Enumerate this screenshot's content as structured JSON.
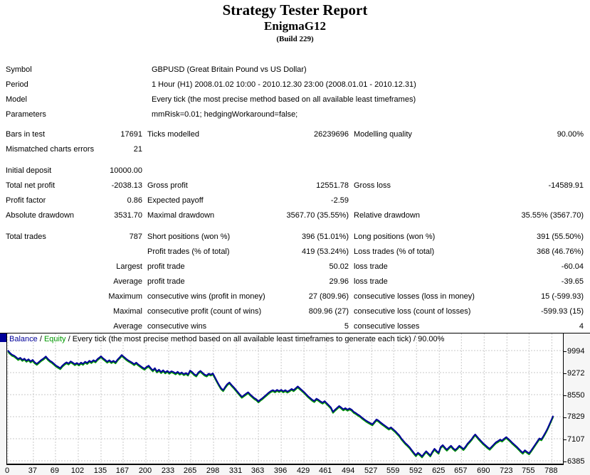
{
  "header": {
    "title": "Strategy Tester Report",
    "subtitle": "EnigmaG12",
    "build": "(Build 229)"
  },
  "info_rows": [
    {
      "label": "Symbol",
      "value": "GBPUSD (Great Britain Pound vs US Dollar)"
    },
    {
      "label": "Period",
      "value": "1 Hour (H1) 2008.01.02 10:00 - 2010.12.30 23:00 (2008.01.01 - 2010.12.31)"
    },
    {
      "label": "Model",
      "value": "Every tick (the most precise method based on all available least timeframes)"
    },
    {
      "label": "Parameters",
      "value": "mmRisk=0.01; hedgingWorkaround=false;"
    }
  ],
  "stats": {
    "sections": [
      {
        "rows": [
          [
            "Bars in test",
            "17691",
            "Ticks modelled",
            "26239696",
            "Modelling quality",
            "90.00%"
          ],
          [
            "Mismatched charts errors",
            "21",
            "",
            "",
            "",
            ""
          ]
        ]
      },
      {
        "rows": [
          [
            "Initial deposit",
            "10000.00",
            "",
            "",
            "",
            ""
          ],
          [
            "Total net profit",
            "-2038.13",
            "Gross profit",
            "12551.78",
            "Gross loss",
            "-14589.91"
          ],
          [
            "Profit factor",
            "0.86",
            "Expected payoff",
            "-2.59",
            "",
            ""
          ],
          [
            "Absolute drawdown",
            "3531.70",
            "Maximal drawdown",
            "3567.70 (35.55%)",
            "Relative drawdown",
            "35.55% (3567.70)"
          ]
        ]
      },
      {
        "rows": [
          [
            "Total trades",
            "787",
            "Short positions (won %)",
            "396 (51.01%)",
            "Long positions (won %)",
            "391 (55.50%)"
          ],
          [
            "",
            "",
            "Profit trades (% of total)",
            "419 (53.24%)",
            "Loss trades (% of total)",
            "368 (46.76%)"
          ],
          [
            "",
            "Largest",
            "profit trade",
            "50.02",
            "loss trade",
            "-60.04"
          ],
          [
            "",
            "Average",
            "profit trade",
            "29.96",
            "loss trade",
            "-39.65"
          ],
          [
            "",
            "Maximum",
            "consecutive wins (profit in money)",
            "27 (809.96)",
            "consecutive losses (loss in money)",
            "15 (-599.93)"
          ],
          [
            "",
            "Maximal",
            "consecutive profit (count of wins)",
            "809.96 (27)",
            "consecutive loss (count of losses)",
            "-599.93 (15)"
          ],
          [
            "",
            "Average",
            "consecutive wins",
            "5",
            "consecutive losses",
            "4"
          ]
        ]
      }
    ]
  },
  "chart_data": {
    "type": "line",
    "legend": {
      "balance_label": "Balance",
      "equity_label": "Equity",
      "separator": " / ",
      "description": "Every tick (the most precise method based on all available least timeframes to generate each tick) / 90.00%"
    },
    "colors": {
      "balance": "#000099",
      "equity": "#009900",
      "grid": "#c9c9c9"
    },
    "x_ticks": [
      0,
      37,
      69,
      102,
      135,
      167,
      200,
      233,
      265,
      298,
      331,
      363,
      396,
      429,
      461,
      494,
      527,
      559,
      592,
      625,
      657,
      690,
      723,
      755,
      788
    ],
    "y_ticks": [
      9994,
      9272,
      8550,
      7829,
      7107,
      6385
    ],
    "xlim": [
      0,
      805
    ],
    "ylim": [
      6290,
      10550
    ],
    "series": [
      {
        "name": "Balance",
        "color": "#000099",
        "points": [
          [
            0,
            10000
          ],
          [
            3,
            9920
          ],
          [
            6,
            9860
          ],
          [
            9,
            9830
          ],
          [
            12,
            9780
          ],
          [
            15,
            9720
          ],
          [
            18,
            9760
          ],
          [
            21,
            9690
          ],
          [
            24,
            9730
          ],
          [
            27,
            9660
          ],
          [
            30,
            9710
          ],
          [
            33,
            9640
          ],
          [
            36,
            9690
          ],
          [
            39,
            9610
          ],
          [
            42,
            9560
          ],
          [
            45,
            9620
          ],
          [
            48,
            9680
          ],
          [
            52,
            9740
          ],
          [
            55,
            9800
          ],
          [
            58,
            9720
          ],
          [
            61,
            9660
          ],
          [
            64,
            9620
          ],
          [
            67,
            9560
          ],
          [
            70,
            9500
          ],
          [
            73,
            9460
          ],
          [
            76,
            9420
          ],
          [
            79,
            9500
          ],
          [
            82,
            9560
          ],
          [
            85,
            9610
          ],
          [
            88,
            9570
          ],
          [
            91,
            9640
          ],
          [
            94,
            9600
          ],
          [
            97,
            9550
          ],
          [
            100,
            9590
          ],
          [
            103,
            9540
          ],
          [
            106,
            9600
          ],
          [
            109,
            9560
          ],
          [
            112,
            9630
          ],
          [
            115,
            9590
          ],
          [
            118,
            9660
          ],
          [
            121,
            9620
          ],
          [
            124,
            9680
          ],
          [
            127,
            9640
          ],
          [
            130,
            9720
          ],
          [
            133,
            9770
          ],
          [
            135,
            9810
          ],
          [
            138,
            9740
          ],
          [
            141,
            9690
          ],
          [
            144,
            9630
          ],
          [
            147,
            9680
          ],
          [
            150,
            9620
          ],
          [
            153,
            9660
          ],
          [
            156,
            9610
          ],
          [
            159,
            9700
          ],
          [
            162,
            9770
          ],
          [
            165,
            9850
          ],
          [
            168,
            9790
          ],
          [
            171,
            9730
          ],
          [
            174,
            9680
          ],
          [
            177,
            9640
          ],
          [
            180,
            9600
          ],
          [
            183,
            9550
          ],
          [
            186,
            9600
          ],
          [
            189,
            9540
          ],
          [
            192,
            9490
          ],
          [
            195,
            9440
          ],
          [
            198,
            9400
          ],
          [
            201,
            9460
          ],
          [
            204,
            9500
          ],
          [
            207,
            9420
          ],
          [
            210,
            9350
          ],
          [
            213,
            9420
          ],
          [
            216,
            9310
          ],
          [
            219,
            9370
          ],
          [
            222,
            9290
          ],
          [
            225,
            9350
          ],
          [
            228,
            9280
          ],
          [
            231,
            9330
          ],
          [
            234,
            9270
          ],
          [
            237,
            9320
          ],
          [
            240,
            9290
          ],
          [
            243,
            9250
          ],
          [
            246,
            9300
          ],
          [
            249,
            9240
          ],
          [
            252,
            9280
          ],
          [
            255,
            9220
          ],
          [
            258,
            9260
          ],
          [
            261,
            9210
          ],
          [
            264,
            9340
          ],
          [
            267,
            9290
          ],
          [
            270,
            9220
          ],
          [
            273,
            9180
          ],
          [
            276,
            9280
          ],
          [
            279,
            9330
          ],
          [
            282,
            9270
          ],
          [
            285,
            9210
          ],
          [
            288,
            9180
          ],
          [
            291,
            9240
          ],
          [
            294,
            9210
          ],
          [
            297,
            9250
          ],
          [
            300,
            9120
          ],
          [
            303,
            8990
          ],
          [
            306,
            8870
          ],
          [
            309,
            8760
          ],
          [
            312,
            8700
          ],
          [
            315,
            8810
          ],
          [
            318,
            8900
          ],
          [
            321,
            8950
          ],
          [
            324,
            8870
          ],
          [
            327,
            8800
          ],
          [
            330,
            8720
          ],
          [
            333,
            8640
          ],
          [
            336,
            8560
          ],
          [
            339,
            8480
          ],
          [
            342,
            8530
          ],
          [
            345,
            8580
          ],
          [
            348,
            8630
          ],
          [
            351,
            8560
          ],
          [
            354,
            8500
          ],
          [
            357,
            8440
          ],
          [
            360,
            8400
          ],
          [
            363,
            8330
          ],
          [
            366,
            8390
          ],
          [
            369,
            8440
          ],
          [
            372,
            8500
          ],
          [
            375,
            8560
          ],
          [
            378,
            8620
          ],
          [
            381,
            8670
          ],
          [
            384,
            8700
          ],
          [
            387,
            8660
          ],
          [
            390,
            8710
          ],
          [
            393,
            8670
          ],
          [
            396,
            8710
          ],
          [
            399,
            8660
          ],
          [
            402,
            8700
          ],
          [
            405,
            8650
          ],
          [
            408,
            8690
          ],
          [
            411,
            8740
          ],
          [
            414,
            8700
          ],
          [
            417,
            8760
          ],
          [
            420,
            8820
          ],
          [
            423,
            8760
          ],
          [
            426,
            8700
          ],
          [
            429,
            8640
          ],
          [
            432,
            8570
          ],
          [
            435,
            8500
          ],
          [
            438,
            8440
          ],
          [
            441,
            8380
          ],
          [
            444,
            8340
          ],
          [
            447,
            8420
          ],
          [
            450,
            8380
          ],
          [
            453,
            8330
          ],
          [
            456,
            8290
          ],
          [
            459,
            8340
          ],
          [
            462,
            8270
          ],
          [
            465,
            8200
          ],
          [
            468,
            8130
          ],
          [
            471,
            7990
          ],
          [
            474,
            8060
          ],
          [
            477,
            8120
          ],
          [
            480,
            8180
          ],
          [
            483,
            8130
          ],
          [
            486,
            8070
          ],
          [
            489,
            8110
          ],
          [
            492,
            8060
          ],
          [
            495,
            8100
          ],
          [
            498,
            8060
          ],
          [
            501,
            7990
          ],
          [
            504,
            7950
          ],
          [
            507,
            7900
          ],
          [
            510,
            7860
          ],
          [
            513,
            7800
          ],
          [
            516,
            7750
          ],
          [
            519,
            7700
          ],
          [
            522,
            7660
          ],
          [
            525,
            7620
          ],
          [
            528,
            7580
          ],
          [
            531,
            7660
          ],
          [
            534,
            7740
          ],
          [
            537,
            7700
          ],
          [
            540,
            7640
          ],
          [
            543,
            7590
          ],
          [
            546,
            7540
          ],
          [
            549,
            7490
          ],
          [
            552,
            7440
          ],
          [
            555,
            7480
          ],
          [
            558,
            7420
          ],
          [
            561,
            7360
          ],
          [
            564,
            7290
          ],
          [
            567,
            7220
          ],
          [
            570,
            7120
          ],
          [
            573,
            7040
          ],
          [
            576,
            6960
          ],
          [
            579,
            6900
          ],
          [
            582,
            6830
          ],
          [
            585,
            6740
          ],
          [
            588,
            6650
          ],
          [
            591,
            6570
          ],
          [
            594,
            6650
          ],
          [
            597,
            6600
          ],
          [
            600,
            6530
          ],
          [
            603,
            6620
          ],
          [
            606,
            6700
          ],
          [
            609,
            6630
          ],
          [
            612,
            6560
          ],
          [
            615,
            6680
          ],
          [
            618,
            6780
          ],
          [
            621,
            6710
          ],
          [
            624,
            6650
          ],
          [
            627,
            6840
          ],
          [
            630,
            6900
          ],
          [
            633,
            6820
          ],
          [
            636,
            6750
          ],
          [
            639,
            6820
          ],
          [
            642,
            6880
          ],
          [
            645,
            6800
          ],
          [
            648,
            6740
          ],
          [
            651,
            6800
          ],
          [
            654,
            6880
          ],
          [
            657,
            6830
          ],
          [
            660,
            6770
          ],
          [
            663,
            6850
          ],
          [
            666,
            6950
          ],
          [
            669,
            7020
          ],
          [
            672,
            7100
          ],
          [
            675,
            7200
          ],
          [
            677,
            7250
          ],
          [
            680,
            7170
          ],
          [
            683,
            7090
          ],
          [
            686,
            7020
          ],
          [
            689,
            6950
          ],
          [
            692,
            6890
          ],
          [
            695,
            6830
          ],
          [
            698,
            6780
          ],
          [
            701,
            6850
          ],
          [
            704,
            6920
          ],
          [
            707,
            6990
          ],
          [
            710,
            7030
          ],
          [
            713,
            7080
          ],
          [
            716,
            7050
          ],
          [
            719,
            7110
          ],
          [
            722,
            7160
          ],
          [
            725,
            7100
          ],
          [
            728,
            7040
          ],
          [
            731,
            6970
          ],
          [
            734,
            6910
          ],
          [
            737,
            6850
          ],
          [
            740,
            6780
          ],
          [
            743,
            6710
          ],
          [
            746,
            6650
          ],
          [
            749,
            6730
          ],
          [
            752,
            6680
          ],
          [
            755,
            6630
          ],
          [
            758,
            6720
          ],
          [
            761,
            6820
          ],
          [
            764,
            6920
          ],
          [
            767,
            7020
          ],
          [
            770,
            7120
          ],
          [
            773,
            7090
          ],
          [
            776,
            7200
          ],
          [
            779,
            7320
          ],
          [
            782,
            7450
          ],
          [
            785,
            7600
          ],
          [
            788,
            7760
          ],
          [
            790,
            7860
          ]
        ]
      },
      {
        "name": "Equity",
        "color": "#009900",
        "points_same_as": "Balance"
      }
    ]
  }
}
